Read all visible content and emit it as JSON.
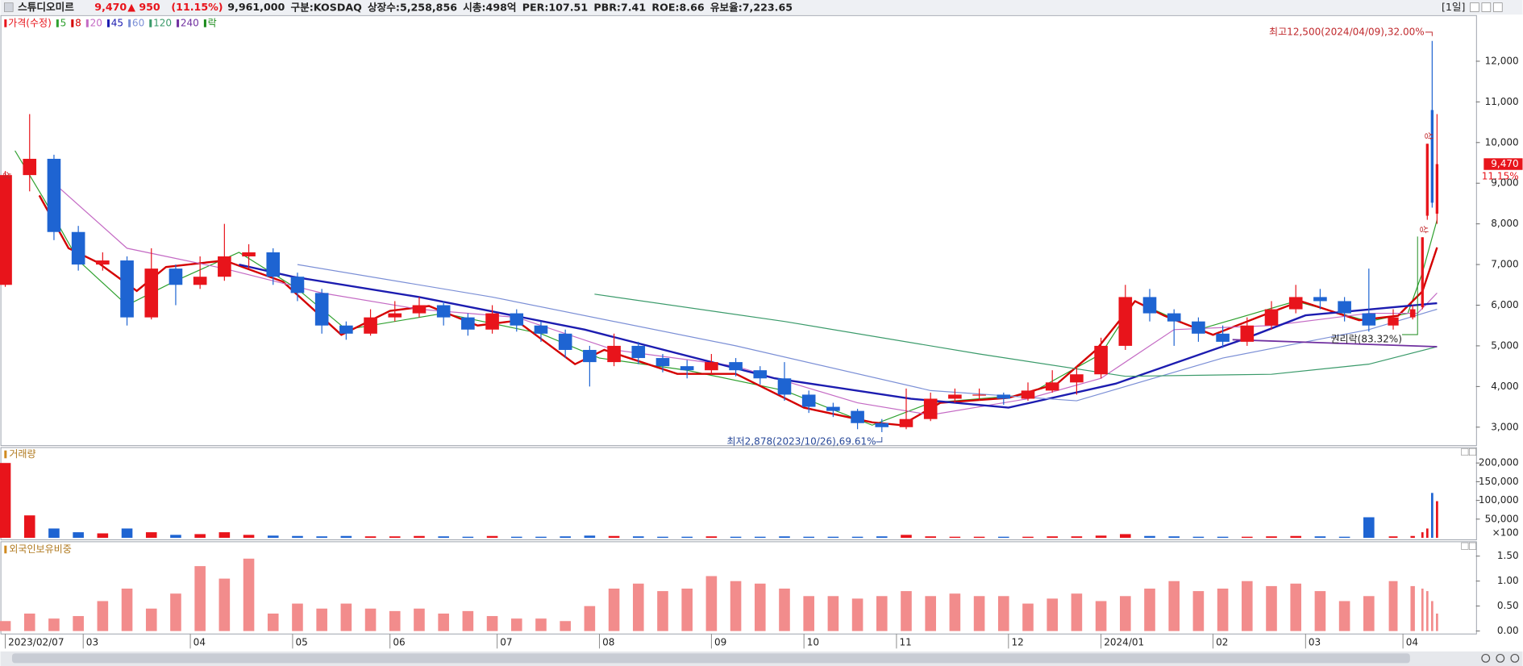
{
  "header": {
    "name": "스튜디오미르",
    "price": "9,470",
    "change": "▲ 950",
    "change_pct": "(11.15%)",
    "volume": "9,961,000",
    "info": [
      "구분:KOSDAQ",
      "상장수:5,258,856",
      "시총:498억",
      "PER:107.51",
      "PBR:7.41",
      "ROE:8.66",
      "유보율:7,223.65"
    ],
    "period": "[1일]"
  },
  "chart_data": [
    {
      "type": "candlestick",
      "legend_title": "가격(수정)",
      "x": [
        0,
        5,
        10,
        15,
        20,
        25,
        30,
        35,
        40,
        45,
        50,
        55,
        60,
        65,
        70,
        75,
        80,
        85,
        90,
        95,
        100,
        105,
        110,
        115,
        120,
        125,
        130,
        135,
        140,
        145,
        150,
        155,
        160,
        165,
        170,
        175,
        180,
        185,
        190,
        195,
        200,
        205,
        210,
        215,
        220,
        225,
        230,
        235,
        240,
        245,
        250,
        255,
        260,
        265,
        270,
        275,
        280,
        285,
        289,
        291,
        292,
        293,
        294
      ],
      "open": [
        6500,
        9200,
        9600,
        7800,
        7000,
        7100,
        5700,
        6900,
        6500,
        6700,
        7200,
        7300,
        6700,
        6300,
        5500,
        5300,
        5700,
        5800,
        6000,
        5700,
        5400,
        5800,
        5500,
        5300,
        4900,
        4600,
        5000,
        4700,
        4500,
        4400,
        4600,
        4400,
        4200,
        3800,
        3500,
        3400,
        3100,
        3000,
        3200,
        3700,
        3800,
        3800,
        3700,
        3900,
        4100,
        4300,
        5000,
        6200,
        5800,
        5600,
        5300,
        5100,
        5500,
        5900,
        6200,
        6100,
        5800,
        5500,
        5700,
        5950,
        8200,
        10800,
        8250
      ],
      "high": [
        9300,
        10700,
        9700,
        7950,
        7300,
        7200,
        7400,
        7000,
        7200,
        8000,
        7500,
        7400,
        6800,
        6400,
        5600,
        5900,
        6100,
        6200,
        6100,
        5800,
        6000,
        5900,
        5600,
        5400,
        5000,
        5300,
        5100,
        4800,
        4650,
        4800,
        4700,
        4500,
        4600,
        3900,
        3600,
        3450,
        3200,
        3950,
        3850,
        3950,
        3950,
        3850,
        4100,
        4400,
        4500,
        5200,
        6500,
        6400,
        5900,
        5700,
        5500,
        5700,
        6100,
        6500,
        6400,
        6200,
        6900,
        5900,
        6000,
        7670,
        9970,
        12500,
        10700
      ],
      "low": [
        6450,
        8800,
        7600,
        6850,
        6850,
        5500,
        5650,
        6000,
        6400,
        6600,
        6900,
        6500,
        6100,
        5300,
        5150,
        5250,
        5600,
        5700,
        5500,
        5250,
        5300,
        5350,
        5100,
        4700,
        4000,
        4500,
        4550,
        4350,
        4200,
        4300,
        4250,
        4050,
        3650,
        3350,
        3250,
        2950,
        2878,
        2950,
        3150,
        3600,
        3650,
        3550,
        3650,
        3850,
        3800,
        4200,
        4900,
        5600,
        5000,
        5100,
        4950,
        5000,
        5400,
        5800,
        5900,
        5600,
        5350,
        5400,
        5650,
        5900,
        8100,
        8400,
        8000
      ],
      "close": [
        9200,
        9600,
        7800,
        7000,
        7100,
        5700,
        6900,
        6500,
        6700,
        7200,
        7300,
        6700,
        6300,
        5500,
        5300,
        5700,
        5800,
        6000,
        5700,
        5400,
        5800,
        5500,
        5300,
        4900,
        4600,
        5000,
        4700,
        4500,
        4400,
        4600,
        4400,
        4200,
        3800,
        3500,
        3400,
        3100,
        3000,
        3200,
        3700,
        3800,
        3800,
        3700,
        3900,
        4100,
        4300,
        5000,
        6200,
        5800,
        5600,
        5300,
        5100,
        5500,
        5900,
        6200,
        6100,
        5800,
        5500,
        5700,
        5900,
        7670,
        9970,
        8520,
        9470
      ],
      "up_color": "#e8141b",
      "down_color": "#1e64d2",
      "xlim": [
        -1,
        302
      ],
      "ylim": [
        2570,
        13100
      ],
      "yticks": [
        {
          "value": 3000,
          "label": "3,000"
        },
        {
          "value": 4000,
          "label": "4,000"
        },
        {
          "value": 5000,
          "label": "5,000"
        },
        {
          "value": 6000,
          "label": "6,000"
        },
        {
          "value": 7000,
          "label": "7,000"
        },
        {
          "value": 8000,
          "label": "8,000"
        },
        {
          "value": 9000,
          "label": "9,000"
        },
        {
          "value": 10000,
          "label": "10,000"
        },
        {
          "value": 11000,
          "label": "11,000"
        },
        {
          "value": 12000,
          "label": "12,000"
        }
      ],
      "xticks": [
        {
          "value": 0,
          "label": "2023/02/07"
        },
        {
          "value": 16,
          "label": "03"
        },
        {
          "value": 38,
          "label": "04"
        },
        {
          "value": 59,
          "label": "05"
        },
        {
          "value": 79,
          "label": "06"
        },
        {
          "value": 101,
          "label": "07"
        },
        {
          "value": 122,
          "label": "08"
        },
        {
          "value": 145,
          "label": "09"
        },
        {
          "value": 164,
          "label": "10"
        },
        {
          "value": 183,
          "label": "11"
        },
        {
          "value": 206,
          "label": "12"
        },
        {
          "value": 225,
          "label": "2024/01"
        },
        {
          "value": 248,
          "label": "02"
        },
        {
          "value": 267,
          "label": "03"
        },
        {
          "value": 287,
          "label": "04"
        }
      ],
      "series": [
        {
          "name": "5",
          "color": "#2ea02e",
          "width": 1,
          "x": [
            2,
            8,
            15,
            25,
            35,
            48,
            60,
            70,
            90,
            110,
            122,
            140,
            160,
            178,
            190,
            210,
            225,
            232,
            245,
            265,
            280,
            288,
            291,
            294
          ],
          "values": [
            9800,
            8600,
            7100,
            6000,
            6600,
            7300,
            6400,
            5400,
            5800,
            5300,
            4700,
            4400,
            3900,
            3050,
            3600,
            3800,
            4800,
            6100,
            5400,
            6100,
            5600,
            5800,
            6800,
            8100
          ]
        },
        {
          "name": "8",
          "color": "#d40000",
          "width": 2,
          "x": [
            7,
            13,
            19,
            27,
            33,
            45,
            57,
            69,
            79,
            87,
            97,
            105,
            117,
            123,
            138,
            150,
            164,
            178,
            184,
            192,
            206,
            216,
            224,
            232,
            238,
            248,
            258,
            266,
            278,
            286,
            291,
            294
          ],
          "values": [
            8700,
            7400,
            7050,
            6350,
            6940,
            7100,
            6580,
            5270,
            5860,
            5980,
            5500,
            5620,
            4550,
            4900,
            4310,
            4310,
            3480,
            3120,
            3050,
            3600,
            3720,
            4070,
            4900,
            6100,
            5740,
            5270,
            5740,
            6100,
            5630,
            5740,
            6340,
            7420
          ]
        },
        {
          "name": "20",
          "color": "#c46ac4",
          "width": 1,
          "x": [
            10,
            25,
            45,
            65,
            85,
            105,
            125,
            150,
            175,
            190,
            210,
            225,
            240,
            260,
            280,
            290,
            294
          ],
          "values": [
            9000,
            7400,
            6900,
            6300,
            5900,
            5700,
            4900,
            4500,
            3600,
            3300,
            3700,
            4200,
            5400,
            5500,
            5800,
            5800,
            6300
          ]
        },
        {
          "name": "45",
          "color": "#1c1cb0",
          "width": 2,
          "x": [
            48,
            59,
            85,
            119,
            158,
            186,
            206,
            228,
            254,
            267,
            294
          ],
          "values": [
            7000,
            6700,
            6200,
            5400,
            4200,
            3700,
            3480,
            4070,
            5150,
            5750,
            6050
          ]
        },
        {
          "name": "60",
          "color": "#7b8fd6",
          "width": 1,
          "x": [
            60,
            100,
            150,
            190,
            220,
            250,
            280,
            294
          ],
          "values": [
            7000,
            6200,
            5000,
            3900,
            3650,
            4700,
            5400,
            5900
          ]
        },
        {
          "name": "120",
          "color": "#3a9a6a",
          "width": 1,
          "x": [
            121,
            160,
            200,
            230,
            260,
            280,
            294
          ],
          "values": [
            6270,
            5600,
            4800,
            4250,
            4300,
            4550,
            4980
          ]
        },
        {
          "name": "240",
          "color": "#7030a0",
          "width": 1.5,
          "x": [
            252,
            294
          ],
          "values": [
            5150,
            4980
          ]
        }
      ],
      "legend_extra": {
        "name": "락",
        "color": "#1a8a1a"
      },
      "last_price_label": "9,470",
      "last_change_label": "11.15%",
      "annotations": [
        {
          "text": "최고12,500(2024/04/09),32.00%",
          "x": 293,
          "y": 12500
        },
        {
          "text": "최저2,878(2023/10/26),69.61%",
          "x": 180,
          "y": 2878
        },
        {
          "text": "권리락(83.32%)",
          "x": 290,
          "y": 5300
        },
        {
          "text": "상",
          "x": 0,
          "y": 9000
        },
        {
          "text": "상",
          "x": 291,
          "y": 7670
        },
        {
          "text": "상",
          "x": 292,
          "y": 9970
        }
      ]
    },
    {
      "type": "bar",
      "title": "거래량",
      "x": [
        0,
        5,
        10,
        15,
        20,
        25,
        30,
        35,
        40,
        45,
        50,
        55,
        60,
        65,
        70,
        75,
        80,
        85,
        90,
        95,
        100,
        105,
        110,
        115,
        120,
        125,
        130,
        135,
        140,
        145,
        150,
        155,
        160,
        165,
        170,
        175,
        180,
        185,
        190,
        195,
        200,
        205,
        210,
        215,
        220,
        225,
        230,
        235,
        240,
        245,
        250,
        255,
        260,
        265,
        270,
        275,
        280,
        285,
        289,
        291,
        292,
        293,
        294
      ],
      "values": [
        200000,
        60000,
        25000,
        15000,
        12000,
        25000,
        15000,
        8000,
        10000,
        15000,
        8000,
        6000,
        5000,
        4000,
        5000,
        4000,
        4000,
        5000,
        4000,
        3000,
        5000,
        3000,
        3000,
        4000,
        6000,
        5000,
        4000,
        3000,
        3000,
        4000,
        3000,
        3000,
        4000,
        3000,
        3000,
        3000,
        4000,
        8000,
        4000,
        3000,
        3000,
        3000,
        3000,
        4000,
        4000,
        6000,
        10000,
        5000,
        4000,
        3000,
        3000,
        3000,
        4000,
        5000,
        4000,
        3000,
        55000,
        4000,
        5000,
        15000,
        25000,
        120000,
        98000
      ],
      "ylim": [
        0,
        236000
      ],
      "yticks": [
        {
          "value": 50000,
          "label": "50,000"
        },
        {
          "value": 100000,
          "label": "100,000"
        },
        {
          "value": 150000,
          "label": "150,000"
        },
        {
          "value": 200000,
          "label": "200,000"
        }
      ],
      "unit_label": "×100"
    },
    {
      "type": "bar",
      "title": "외국인보유비중",
      "color": "#f28c8c",
      "x": [
        0,
        5,
        10,
        15,
        20,
        25,
        30,
        35,
        40,
        45,
        50,
        55,
        60,
        65,
        70,
        75,
        80,
        85,
        90,
        95,
        100,
        105,
        110,
        115,
        120,
        125,
        130,
        135,
        140,
        145,
        150,
        155,
        160,
        165,
        170,
        175,
        180,
        185,
        190,
        195,
        200,
        205,
        210,
        215,
        220,
        225,
        230,
        235,
        240,
        245,
        250,
        255,
        260,
        265,
        270,
        275,
        280,
        285,
        289,
        291,
        292,
        293,
        294
      ],
      "values": [
        0.2,
        0.35,
        0.25,
        0.3,
        0.6,
        0.85,
        0.45,
        0.75,
        1.3,
        1.05,
        1.45,
        0.35,
        0.55,
        0.45,
        0.55,
        0.45,
        0.4,
        0.45,
        0.35,
        0.4,
        0.3,
        0.25,
        0.25,
        0.2,
        0.5,
        0.85,
        0.95,
        0.8,
        0.85,
        1.1,
        1.0,
        0.95,
        0.85,
        0.7,
        0.7,
        0.65,
        0.7,
        0.8,
        0.7,
        0.75,
        0.7,
        0.7,
        0.55,
        0.65,
        0.75,
        0.6,
        0.7,
        0.85,
        1.0,
        0.8,
        0.85,
        1.0,
        0.9,
        0.95,
        0.8,
        0.6,
        0.7,
        1.0,
        0.9,
        0.85,
        0.8,
        0.6,
        0.35
      ],
      "ylim": [
        0,
        1.73
      ],
      "yticks": [
        {
          "value": 0,
          "label": "0.00"
        },
        {
          "value": 0.5,
          "label": "0.50"
        },
        {
          "value": 1,
          "label": "1.00"
        },
        {
          "value": 1.5,
          "label": "1.50"
        }
      ]
    }
  ]
}
